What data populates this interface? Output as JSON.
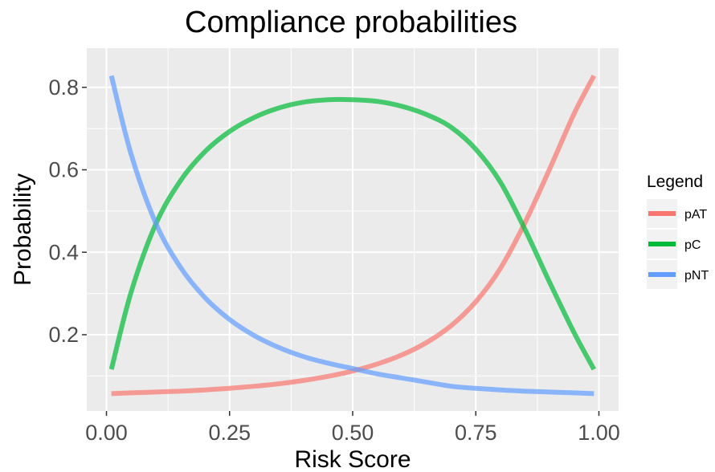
{
  "chart_data": {
    "type": "line",
    "title": "Compliance probabilities",
    "xlabel": "Risk Score",
    "ylabel": "Probability",
    "xlim": [
      -0.04,
      1.04
    ],
    "ylim": [
      0.015,
      0.895
    ],
    "x_ticks": [
      0.0,
      0.25,
      0.5,
      0.75,
      1.0
    ],
    "x_tick_labels": [
      "0.00",
      "0.25",
      "0.50",
      "0.75",
      "1.00"
    ],
    "y_ticks": [
      0.2,
      0.4,
      0.6,
      0.8
    ],
    "y_tick_labels": [
      "0.2",
      "0.4",
      "0.6",
      "0.8"
    ],
    "grid": true,
    "legend": {
      "title": "Legend",
      "placement": "right"
    },
    "x": [
      0.01,
      0.05,
      0.1,
      0.15,
      0.2,
      0.25,
      0.3,
      0.35,
      0.4,
      0.45,
      0.5,
      0.55,
      0.6,
      0.65,
      0.7,
      0.75,
      0.8,
      0.85,
      0.9,
      0.95,
      0.99
    ],
    "series": [
      {
        "name": "pAT",
        "color": "#F8766D",
        "values": [
          0.057,
          0.059,
          0.061,
          0.063,
          0.066,
          0.07,
          0.075,
          0.081,
          0.089,
          0.099,
          0.112,
          0.129,
          0.151,
          0.181,
          0.222,
          0.28,
          0.361,
          0.472,
          0.602,
          0.737,
          0.828
        ]
      },
      {
        "name": "pC",
        "color": "#00BA38",
        "values": [
          0.116,
          0.303,
          0.468,
          0.573,
          0.644,
          0.693,
          0.727,
          0.75,
          0.764,
          0.77,
          0.77,
          0.766,
          0.754,
          0.734,
          0.703,
          0.65,
          0.57,
          0.455,
          0.327,
          0.204,
          0.116
        ]
      },
      {
        "name": "pNT",
        "color": "#619CFF",
        "values": [
          0.828,
          0.638,
          0.471,
          0.364,
          0.29,
          0.237,
          0.198,
          0.169,
          0.147,
          0.131,
          0.118,
          0.105,
          0.095,
          0.085,
          0.075,
          0.07,
          0.066,
          0.063,
          0.061,
          0.059,
          0.057
        ]
      }
    ]
  }
}
